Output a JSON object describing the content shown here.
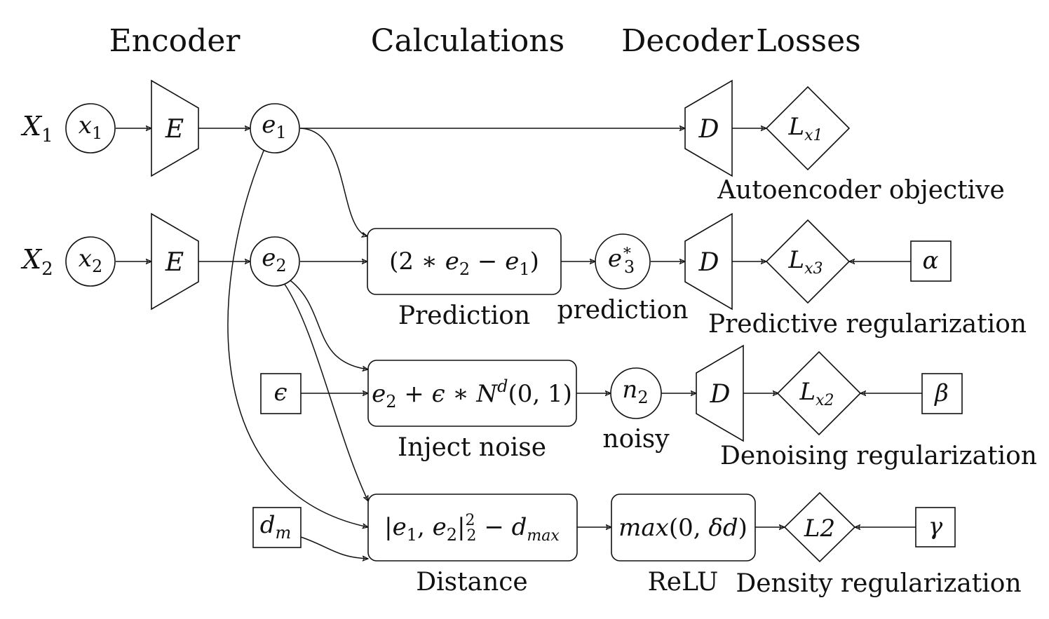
{
  "headers": {
    "encoder": "Encoder",
    "calculations": "Calculations",
    "decoder": "Decoder",
    "losses": "Losses"
  },
  "inputs": {
    "X1": {
      "main": "X",
      "sub": "1"
    },
    "X2": {
      "main": "X",
      "sub": "2"
    }
  },
  "nodes": {
    "x1": {
      "main": "x",
      "sub": "1"
    },
    "x2": {
      "main": "x",
      "sub": "2"
    },
    "encoder1": "E",
    "encoder2": "E",
    "e1": {
      "main": "e",
      "sub": "1"
    },
    "e2": {
      "main": "e",
      "sub": "2"
    },
    "decoder1": "D",
    "decoder2": "D",
    "decoder3": "D",
    "e3star": {
      "main": "e",
      "sup": "∗",
      "sub": "3"
    },
    "n2": {
      "main": "n",
      "sub": "2"
    },
    "epsilon": "ϵ",
    "dm": {
      "main": "d",
      "sub": "m"
    },
    "alpha": "α",
    "beta": "β",
    "gamma": "γ",
    "Lx1": {
      "main": "L",
      "sub": "x1"
    },
    "Lx3": {
      "main": "L",
      "sub": "x3"
    },
    "Lx2": {
      "main": "L",
      "sub": "x2"
    },
    "L2": "L2"
  },
  "boxes": {
    "prediction": {
      "a": "(2 ∗ ",
      "e": "e",
      "sub": "2",
      "b": " − ",
      "e2": "e",
      "sub2": "1",
      "c": ")"
    },
    "noise": {
      "e": "e",
      "sub": "2",
      "a": " + ϵ ∗ ",
      "n": "N",
      "sup": "d",
      "b": "(0, 1)"
    },
    "distance": {
      "a": "|",
      "e": "e",
      "sub": "1",
      "b": ", ",
      "e2": "e",
      "sub2": "2",
      "c": "|",
      "sup": "2",
      "sub3": "2",
      "d": " − ",
      "dd": "d",
      "sub4": "max"
    },
    "relu": {
      "a": "max",
      "b": "(0, ",
      "c": "δd",
      "d": ")"
    }
  },
  "captions": {
    "autoencoder": "Autoencoder objective",
    "prediction_box": "Prediction",
    "prediction_node": "prediction",
    "predictive_reg": "Predictive regularization",
    "inject_noise": "Inject noise",
    "noisy": "noisy",
    "denoising_reg": "Denoising regularization",
    "distance": "Distance",
    "relu": "ReLU",
    "density_reg": "Density regularization"
  }
}
